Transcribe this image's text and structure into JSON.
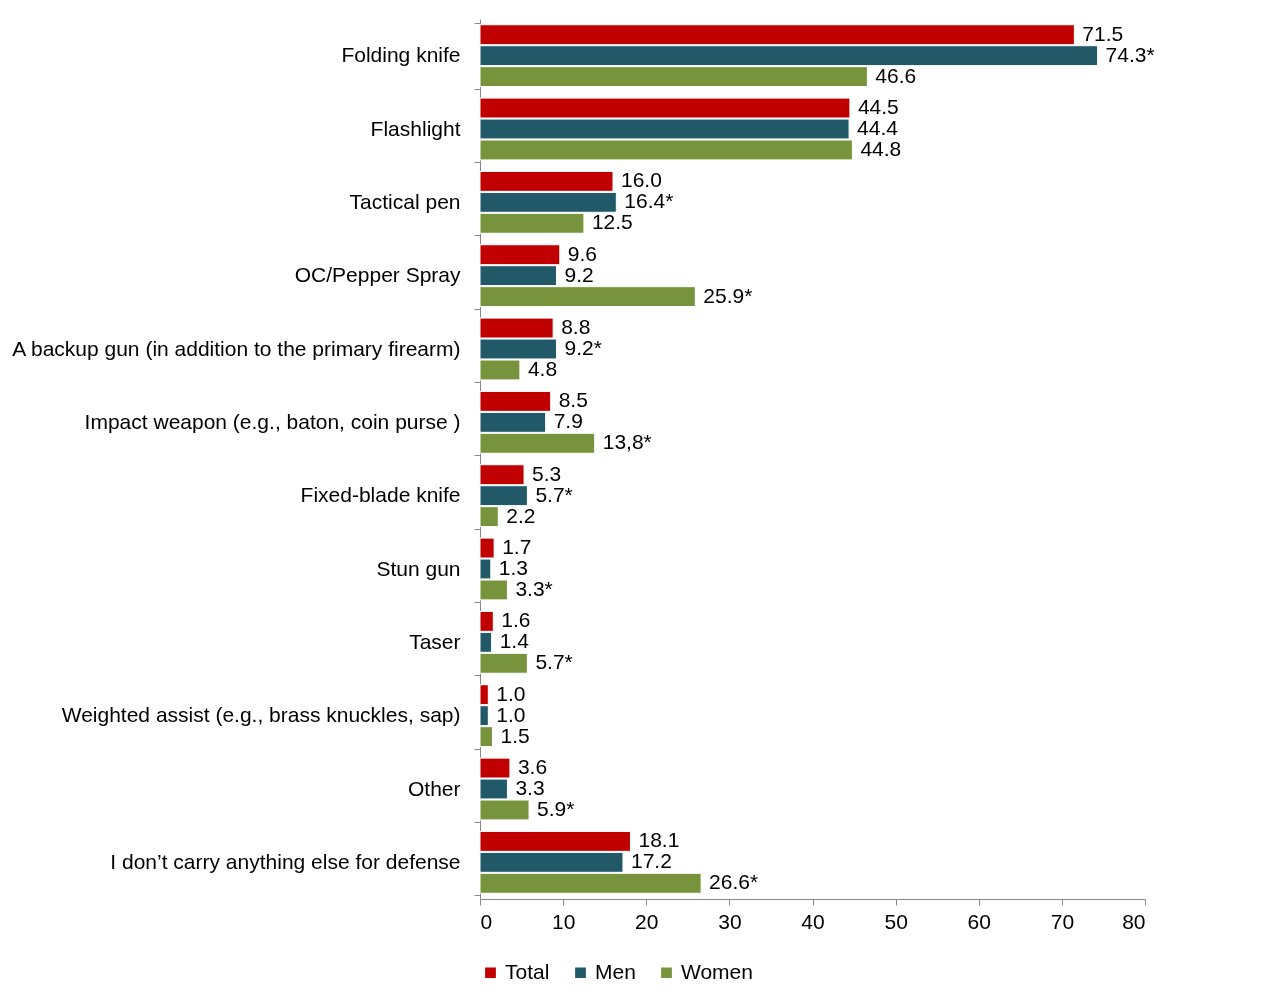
{
  "chart_data": {
    "type": "bar",
    "orientation": "horizontal",
    "categories": [
      "Folding knife",
      "Flashlight",
      "Tactical pen",
      "OC/Pepper Spray",
      "A backup gun (in addition to the primary firearm)",
      "Impact weapon (e.g., baton, coin purse )",
      "Fixed-blade knife",
      "Stun gun",
      "Taser",
      "Weighted assist (e.g., brass knuckles, sap)",
      "Other",
      "I don’t carry anything else for defense"
    ],
    "series": [
      {
        "name": "Total",
        "color": "#c00000",
        "values": [
          71.5,
          44.5,
          16.0,
          9.6,
          8.8,
          8.5,
          5.3,
          1.7,
          1.6,
          1.0,
          3.6,
          18.1
        ],
        "value_labels": [
          "71.5",
          "44.5",
          "16.0",
          "9.6",
          "8.8",
          "8.5",
          "5.3",
          "1.7",
          "1.6",
          "1.0",
          "3.6",
          "18.1"
        ]
      },
      {
        "name": "Men",
        "color": "#215968",
        "values": [
          74.3,
          44.4,
          16.4,
          9.2,
          9.2,
          7.9,
          5.7,
          1.3,
          1.4,
          1.0,
          3.3,
          17.2
        ],
        "value_labels": [
          "74.3*",
          "44.4",
          "16.4*",
          "9.2",
          "9.2*",
          "7.9",
          "5.7*",
          "1.3",
          "1.4",
          "1.0",
          "3.3",
          "17.2"
        ]
      },
      {
        "name": "Women",
        "color": "#77933c",
        "values": [
          46.6,
          44.8,
          12.5,
          25.9,
          4.8,
          13.8,
          2.2,
          3.3,
          5.7,
          1.5,
          5.9,
          26.6
        ],
        "value_labels": [
          "46.6",
          "44.8",
          "12.5",
          "25.9*",
          "4.8",
          "13,8*",
          "2.2",
          "3.3*",
          "5.7*",
          "1.5",
          "5.9*",
          "26.6*"
        ]
      }
    ],
    "xlim": [
      0,
      80
    ],
    "xticks": [
      0,
      10,
      20,
      30,
      40,
      50,
      60,
      70,
      80
    ],
    "grid": false,
    "legend": "bottom"
  }
}
